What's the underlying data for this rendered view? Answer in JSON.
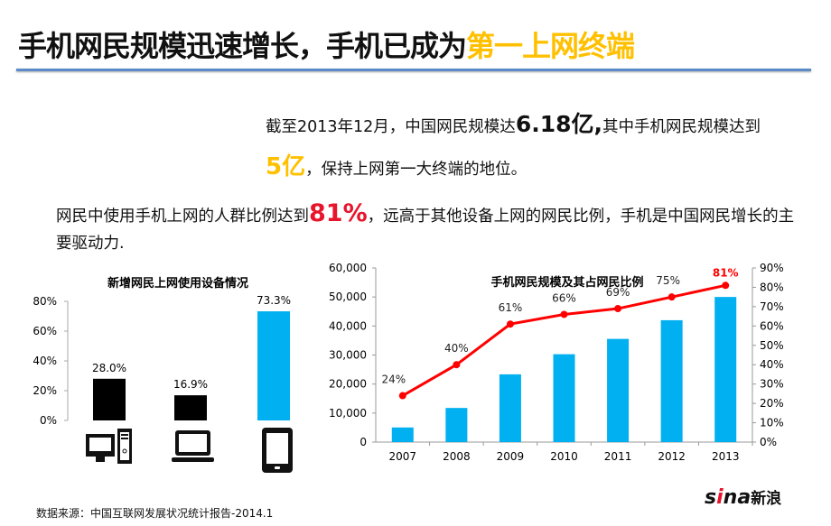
{
  "title": {
    "main": "手机网民规模迅速增长，手机已成为",
    "highlight": "第一上网终端"
  },
  "para1": {
    "t1": "截至2013年12月，中国网民规模达",
    "v1": "6.18亿,",
    "t2": "其中手机网民规模达到",
    "v2": "5亿",
    "t3": "，保持上网第一大终端的地位。"
  },
  "para2": {
    "t1": "网民中使用手机上网的人群比例达到",
    "v1": "81%",
    "t2": "，远高于其他设备上网的网民比例，手机是中国网民增长的主要驱动力."
  },
  "source": "数据来源：中国互联网发展状况统计报告-2014.1",
  "logo": {
    "text": "sina",
    "cn": "新浪"
  },
  "chart_data": [
    {
      "type": "bar",
      "title": "新增网民上网使用设备情况",
      "categories": [
        "desktop",
        "laptop",
        "mobile"
      ],
      "category_icons": [
        "desktop-computer-icon",
        "laptop-icon",
        "tablet-phone-icon"
      ],
      "values": [
        28.0,
        16.9,
        73.3
      ],
      "value_labels": [
        "28.0%",
        "16.9%",
        "73.3%"
      ],
      "ylim": [
        0,
        80
      ],
      "yticks": [
        "0%",
        "20%",
        "40%",
        "60%",
        "80%"
      ],
      "colors": [
        "#000000",
        "#000000",
        "#00b0f0"
      ]
    },
    {
      "type": "bar+line",
      "title": "手机网民规模及其占网民比例",
      "categories": [
        "2007",
        "2008",
        "2009",
        "2010",
        "2011",
        "2012",
        "2013"
      ],
      "series": [
        {
          "type": "bar",
          "values": [
            5040,
            11760,
            23344,
            30274,
            35558,
            41997,
            50006
          ],
          "color": "#00b0f0"
        },
        {
          "type": "line",
          "axis": "right",
          "values": [
            24,
            40,
            61,
            66,
            69,
            75,
            81
          ],
          "labels": [
            "24%",
            "40%",
            "61%",
            "66%",
            "69%",
            "75%",
            "81%"
          ],
          "color": "#ff0000"
        }
      ],
      "ylim": [
        0,
        60000
      ],
      "yticks": [
        "0",
        "10,000",
        "20,000",
        "30,000",
        "40,000",
        "50,000",
        "60,000"
      ],
      "y2lim": [
        0,
        90
      ],
      "y2ticks": [
        "0%",
        "10%",
        "20%",
        "30%",
        "40%",
        "50%",
        "60%",
        "70%",
        "80%",
        "90%"
      ]
    }
  ]
}
